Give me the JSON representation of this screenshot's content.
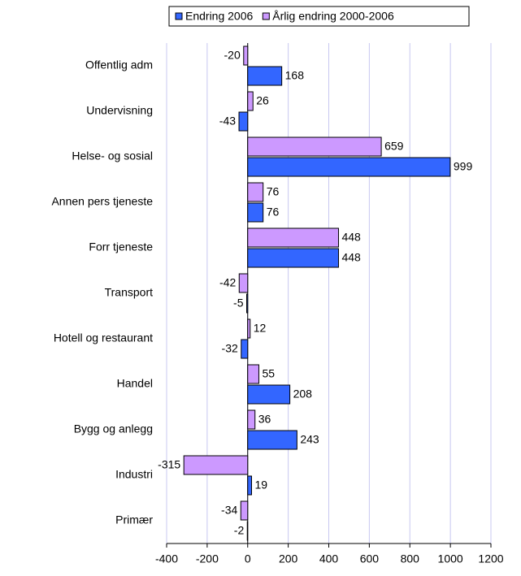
{
  "chart_data": {
    "type": "bar",
    "orientation": "horizontal",
    "categories": [
      "Offentlig adm",
      "Undervisning",
      "Helse- og sosial",
      "Annen pers tjeneste",
      "Forr tjeneste",
      "Transport",
      "Hotell og restaurant",
      "Handel",
      "Bygg og anlegg",
      "Industri",
      "Primær"
    ],
    "series": [
      {
        "name": "Endring 2006",
        "color": "#3366ff",
        "values": [
          168,
          -43,
          999,
          76,
          448,
          -5,
          -32,
          208,
          243,
          19,
          -2
        ]
      },
      {
        "name": "Årlig endring 2000-2006",
        "color": "#cc99ff",
        "values": [
          -20,
          26,
          659,
          76,
          448,
          -42,
          12,
          55,
          36,
          -315,
          -34
        ]
      }
    ],
    "xlim": [
      -400,
      1200
    ],
    "xticks": [
      -400,
      -200,
      0,
      200,
      400,
      600,
      800,
      1000,
      1200
    ],
    "grid": true,
    "legend": "top"
  }
}
